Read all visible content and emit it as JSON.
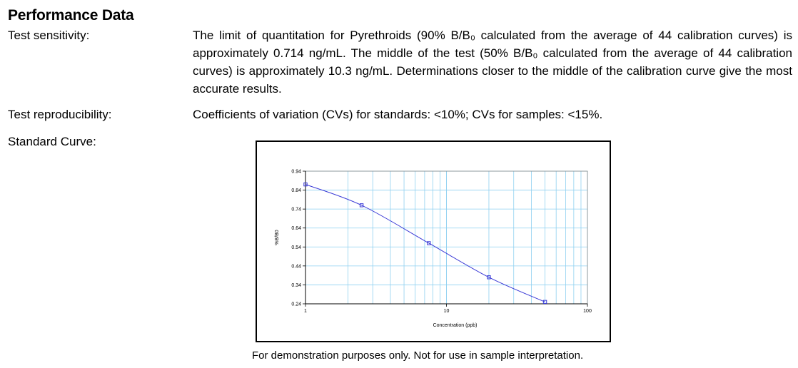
{
  "section": {
    "title": "Performance Data"
  },
  "rows": [
    {
      "label": "Test sensitivity:",
      "text": "The limit of quantitation for Pyrethroids (90% B/B₀ calculated from the average of 44 calibration curves) is approximately 0.714 ng/mL. The middle of the test (50% B/B₀ calculated from the average of 44 calibration curves) is approximately 10.3 ng/mL. Determinations closer to the middle of the calibration curve give the most accurate results."
    },
    {
      "label": "Test reproducibility:",
      "text": "Coefficients of variation (CVs) for standards: <10%; CVs for samples: <15%."
    },
    {
      "label": "Standard Curve:"
    }
  ],
  "caption": "For demonstration purposes only.  Not for use in sample interpretation.",
  "colors": {
    "curve": "#3a3ad6",
    "grid": "#8fd0f0",
    "frame": "#000000"
  },
  "chart_data": {
    "type": "line",
    "title": "",
    "xlabel": "Concentration (ppb)",
    "ylabel": "%B/B0",
    "xscale": "log",
    "xlim": [
      1,
      100
    ],
    "ylim": [
      0.24,
      0.94
    ],
    "x_ticks": [
      "1",
      "10",
      "100"
    ],
    "y_ticks": [
      "0.94",
      "0.84",
      "0.74",
      "0.64",
      "0.54",
      "0.44",
      "0.34",
      "0.24"
    ],
    "grid": true,
    "series": [
      {
        "points_x": [
          1,
          2.5,
          7.5,
          20,
          50
        ],
        "points_y": [
          0.87,
          0.76,
          0.56,
          0.38,
          0.25
        ]
      }
    ]
  }
}
